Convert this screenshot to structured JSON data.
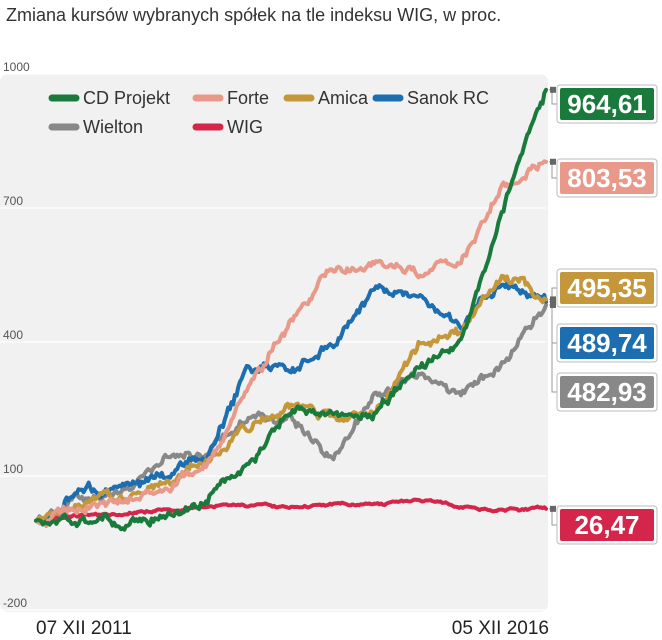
{
  "chart_data": {
    "type": "line",
    "title": "Zmiana kursów wybranych spółek na tle indeksu WIG, w proc.",
    "xlabel": "",
    "ylabel": "",
    "x_start_label": "07 XII 2011",
    "x_end_label": "05 XII 2016",
    "ylim": [
      -200,
      1000
    ],
    "yticks": [
      {
        "value": 1000,
        "label": "1000"
      },
      {
        "value": 700,
        "label": "700"
      },
      {
        "value": 400,
        "label": "400"
      },
      {
        "value": 100,
        "label": "100"
      },
      {
        "value": -200,
        "label": "-200"
      }
    ],
    "x": [
      0,
      5,
      10,
      15,
      20,
      25,
      30,
      35,
      40,
      45,
      50,
      55,
      60
    ],
    "legend_position": "top-left",
    "series": [
      {
        "name": "CD Projekt",
        "color": "#1a7a3c",
        "end_label": "964,61",
        "values": [
          0,
          8,
          -5,
          10,
          40,
          130,
          250,
          230,
          240,
          350,
          400,
          700,
          964.61
        ]
      },
      {
        "name": "Forte",
        "color": "#e8998a",
        "end_label": "803,53",
        "values": [
          0,
          30,
          40,
          70,
          130,
          300,
          450,
          560,
          580,
          560,
          580,
          760,
          803.53
        ]
      },
      {
        "name": "Amica",
        "color": "#c4973a",
        "end_label": "495,35",
        "values": [
          0,
          40,
          50,
          90,
          130,
          210,
          250,
          230,
          240,
          400,
          420,
          560,
          495.35
        ]
      },
      {
        "name": "Sanok RC",
        "color": "#1c6eb0",
        "end_label": "489,74",
        "values": [
          0,
          60,
          70,
          100,
          150,
          340,
          330,
          400,
          520,
          500,
          430,
          540,
          489.74
        ]
      },
      {
        "name": "Wielton",
        "color": "#888888",
        "end_label": "482,93",
        "values": [
          0,
          50,
          60,
          140,
          160,
          220,
          230,
          140,
          280,
          320,
          280,
          360,
          482.93
        ]
      },
      {
        "name": "WIG",
        "color": "#d4254a",
        "end_label": "26,47",
        "values": [
          0,
          10,
          15,
          22,
          28,
          33,
          30,
          38,
          35,
          45,
          30,
          25,
          26.47
        ]
      }
    ]
  }
}
